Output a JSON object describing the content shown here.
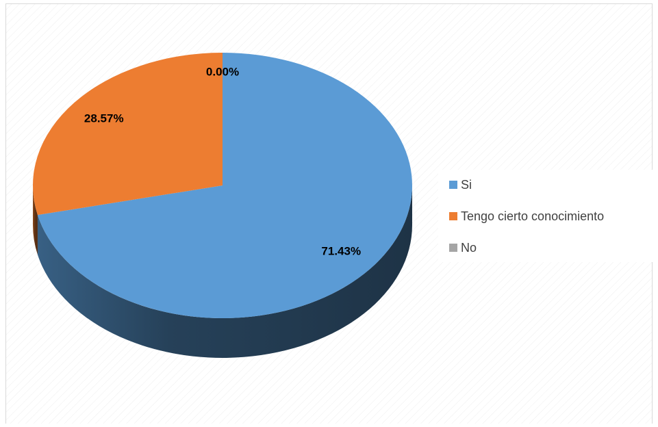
{
  "chart_data": {
    "type": "pie",
    "categories": [
      "Si",
      "Tengo cierto conocimiento",
      "No"
    ],
    "values": [
      71.43,
      28.57,
      0
    ],
    "value_labels": [
      "71.43%",
      "28.57%",
      "0.00%"
    ],
    "colors": [
      "#5b9bd5",
      "#ed7d31",
      "#a5a5a5"
    ],
    "legend": "right"
  }
}
